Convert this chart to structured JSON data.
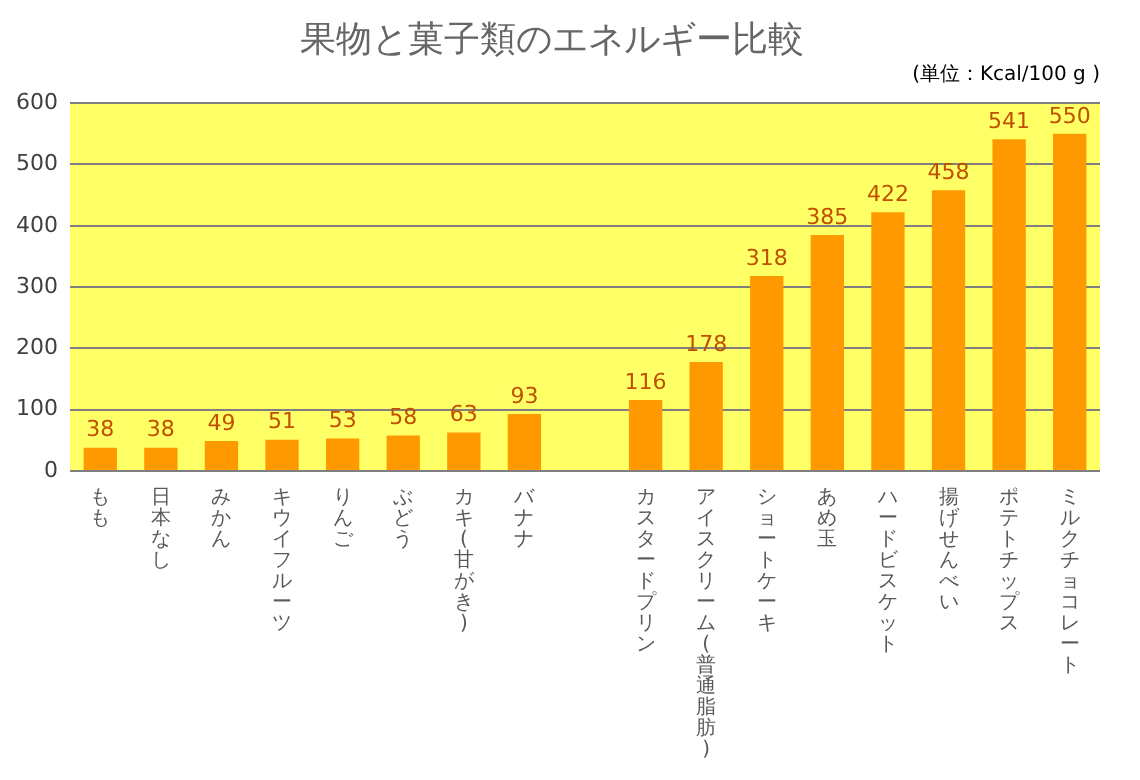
{
  "chart_data": {
    "type": "bar",
    "title": "果物と菓子類のエネルギー比較",
    "subtitle": "(単位：Kcal/100 g )",
    "categories": [
      "もも",
      "日本なし",
      "みかん",
      "キウイフルーツ",
      "りんご",
      "ぶどう",
      "カキ(甘がき)",
      "バナナ",
      null,
      "カスタードプリン",
      "アイスクリーム(普通脂肪)",
      "ショートケーキ",
      "あめ玉",
      "ハードビスケット",
      "揚げせんべい",
      "ポテトチップス",
      "ミルクチョコレート"
    ],
    "values": [
      38,
      38,
      49,
      51,
      53,
      58,
      63,
      93,
      null,
      116,
      178,
      318,
      385,
      422,
      458,
      541,
      550
    ],
    "color": "#ff9900",
    "ylim": [
      0,
      600
    ],
    "yticks": [
      0,
      100,
      200,
      300,
      400,
      500,
      600
    ],
    "grid": "y",
    "data_labels": true,
    "legend": false
  }
}
